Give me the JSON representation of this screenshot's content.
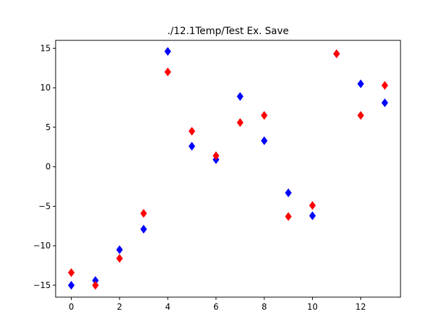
{
  "chart_data": {
    "type": "scatter",
    "title": "./12.1Temp/Test Ex. Save",
    "xlabel": "",
    "ylabel": "",
    "xlim": [
      -0.65,
      13.65
    ],
    "ylim": [
      -16.5,
      16
    ],
    "xticks": [
      0,
      2,
      4,
      6,
      8,
      10,
      12
    ],
    "xtick_labels": [
      "0",
      "2",
      "4",
      "6",
      "8",
      "10",
      "12"
    ],
    "yticks": [
      -15,
      -10,
      -5,
      0,
      5,
      10,
      15
    ],
    "ytick_labels": [
      "−15",
      "−10",
      "−5",
      "0",
      "5",
      "10",
      "15"
    ],
    "grid": false,
    "legend": "none",
    "marker": "diamond",
    "series": [
      {
        "color": "#0000ff",
        "x": [
          0,
          1,
          2,
          3,
          4,
          5,
          6,
          7,
          8,
          9,
          10,
          11,
          12,
          13
        ],
        "values": [
          -15.0,
          -14.4,
          -10.5,
          -7.9,
          14.6,
          2.6,
          0.9,
          8.9,
          3.3,
          -3.3,
          -6.2,
          14.3,
          10.5,
          8.1
        ]
      },
      {
        "color": "#ff0000",
        "x": [
          0,
          1,
          2,
          3,
          4,
          5,
          6,
          7,
          8,
          9,
          10,
          11,
          12,
          13
        ],
        "values": [
          -13.4,
          -15.0,
          -11.6,
          -5.9,
          12.0,
          4.5,
          1.4,
          5.6,
          6.5,
          -6.3,
          -4.9,
          14.3,
          6.5,
          10.3
        ]
      }
    ]
  }
}
